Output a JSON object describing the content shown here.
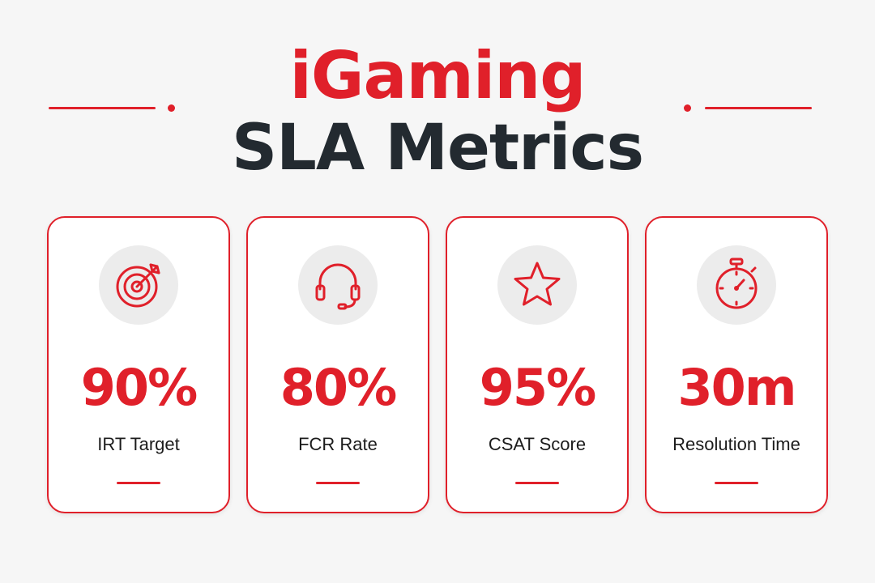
{
  "title": {
    "line1": "iGaming",
    "line2": "SLA Metrics"
  },
  "colors": {
    "accent": "#e0202a",
    "dark": "#232a30",
    "background": "#f6f6f6"
  },
  "cards": [
    {
      "icon": "target-icon",
      "value": "90%",
      "label": "IRT Target"
    },
    {
      "icon": "headset-icon",
      "value": "80%",
      "label": "FCR Rate"
    },
    {
      "icon": "star-icon",
      "value": "95%",
      "label": "CSAT Score"
    },
    {
      "icon": "stopwatch-icon",
      "value": "30m",
      "label": "Resolution Time"
    }
  ]
}
